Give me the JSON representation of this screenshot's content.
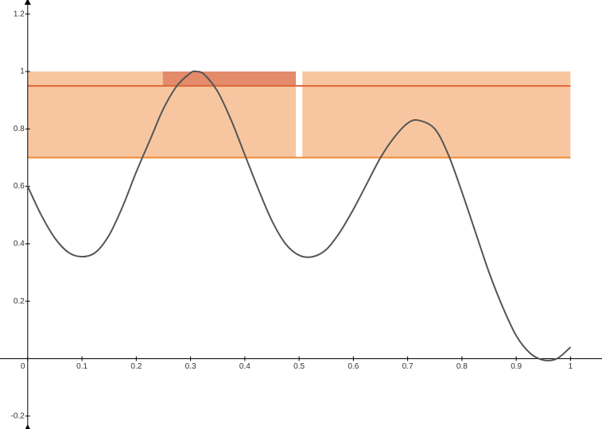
{
  "chart_data": {
    "type": "line",
    "x": [
      0,
      0.025,
      0.05,
      0.075,
      0.1,
      0.125,
      0.15,
      0.175,
      0.2,
      0.225,
      0.25,
      0.275,
      0.3,
      0.31,
      0.325,
      0.35,
      0.375,
      0.4,
      0.425,
      0.45,
      0.475,
      0.5,
      0.525,
      0.55,
      0.575,
      0.6,
      0.625,
      0.65,
      0.675,
      0.7,
      0.72,
      0.75,
      0.775,
      0.8,
      0.825,
      0.85,
      0.875,
      0.9,
      0.925,
      0.95,
      0.975,
      1
    ],
    "values": [
      0.6,
      0.5,
      0.42,
      0.37,
      0.355,
      0.37,
      0.43,
      0.53,
      0.65,
      0.76,
      0.87,
      0.95,
      0.995,
      1.0,
      0.99,
      0.93,
      0.83,
      0.71,
      0.59,
      0.48,
      0.4,
      0.36,
      0.355,
      0.38,
      0.44,
      0.52,
      0.61,
      0.7,
      0.77,
      0.82,
      0.83,
      0.8,
      0.71,
      0.58,
      0.44,
      0.3,
      0.18,
      0.08,
      0.02,
      -0.005,
      0.0,
      0.04
    ],
    "color": "#555555",
    "regions": [
      {
        "x": [
          0,
          0.494
        ],
        "y": [
          0.7,
          1
        ],
        "color": "#f7c6a0"
      },
      {
        "x": [
          0.506,
          1
        ],
        "y": [
          0.7,
          1
        ],
        "color": "#f7c6a0"
      },
      {
        "x": [
          0.249,
          0.494
        ],
        "y": [
          0.95,
          1
        ],
        "color": "#e38b6b"
      }
    ],
    "hlines": [
      {
        "x": [
          0,
          1
        ],
        "y": 0.95,
        "color": "#e0653a"
      },
      {
        "x": [
          0,
          1
        ],
        "y": 0.7,
        "color": "#f08a36"
      }
    ],
    "xlim": [
      -0.051,
      1.058
    ],
    "ylim": [
      -0.245,
      1.249
    ],
    "xticks": [
      0,
      0.1,
      0.2,
      0.3,
      0.4,
      0.5,
      0.6,
      0.7,
      0.8,
      0.9,
      1
    ],
    "yticks": [
      -0.2,
      0.2,
      0.4,
      0.6,
      0.8,
      1,
      1.2
    ]
  }
}
